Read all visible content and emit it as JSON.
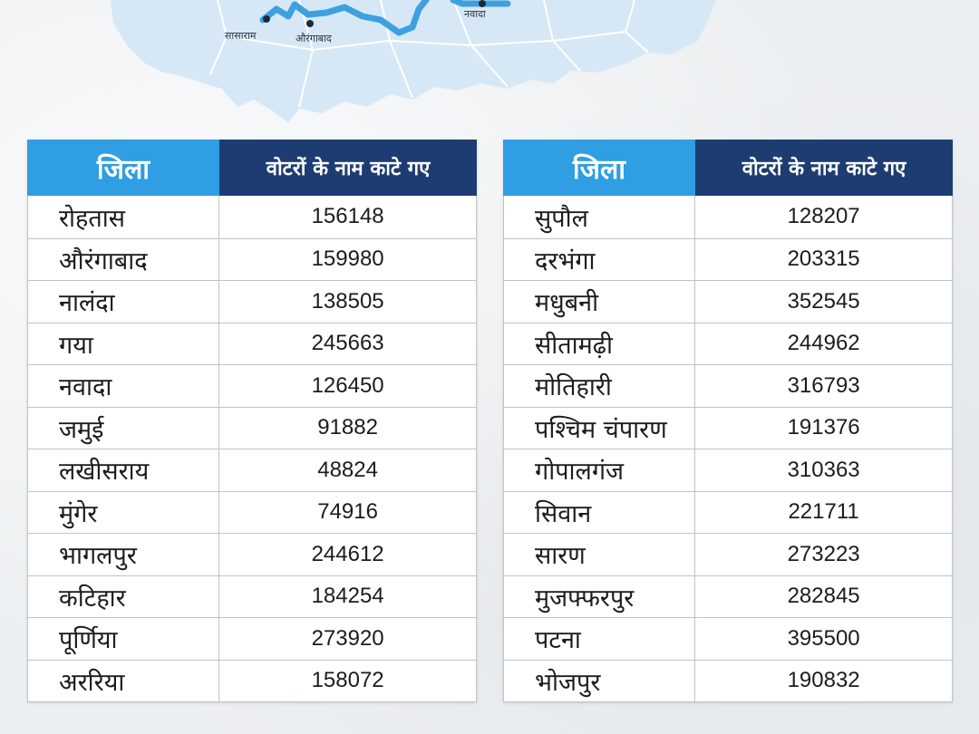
{
  "map": {
    "labels": [
      "सासाराम",
      "औरंगाबाद",
      "नवादा"
    ],
    "colors": {
      "land": "#d6e8f5",
      "route": "#3ea0e0",
      "border": "#ffffff"
    }
  },
  "tables": [
    {
      "header": {
        "district": "जिला",
        "count": "वोटरों के नाम काटे गए"
      },
      "rows": [
        {
          "district": "रोहतास",
          "count": "156148"
        },
        {
          "district": "औरंगाबाद",
          "count": "159980"
        },
        {
          "district": "नालंदा",
          "count": "138505"
        },
        {
          "district": "गया",
          "count": "245663"
        },
        {
          "district": "नवादा",
          "count": "126450"
        },
        {
          "district": "जमुई",
          "count": "91882"
        },
        {
          "district": "लखीसराय",
          "count": "48824"
        },
        {
          "district": "मुंगेर",
          "count": "74916"
        },
        {
          "district": "भागलपुर",
          "count": "244612"
        },
        {
          "district": "कटिहार",
          "count": "184254"
        },
        {
          "district": "पूर्णिया",
          "count": "273920"
        },
        {
          "district": "अररिया",
          "count": "158072"
        }
      ]
    },
    {
      "header": {
        "district": "जिला",
        "count": "वोटरों के नाम काटे गए"
      },
      "rows": [
        {
          "district": "सुपौल",
          "count": "128207"
        },
        {
          "district": "दरभंगा",
          "count": "203315"
        },
        {
          "district": "मधुबनी",
          "count": "352545"
        },
        {
          "district": "सीतामढ़ी",
          "count": "244962"
        },
        {
          "district": "मोतिहारी",
          "count": "316793"
        },
        {
          "district": "पश्चिम चंपारण",
          "count": "191376"
        },
        {
          "district": "गोपालगंज",
          "count": "310363"
        },
        {
          "district": "सिवान",
          "count": "221711"
        },
        {
          "district": "सारण",
          "count": "273223"
        },
        {
          "district": "मुजफ्फरपुर",
          "count": "282845"
        },
        {
          "district": "पटना",
          "count": "395500"
        },
        {
          "district": "भोजपुर",
          "count": "190832"
        }
      ]
    }
  ]
}
